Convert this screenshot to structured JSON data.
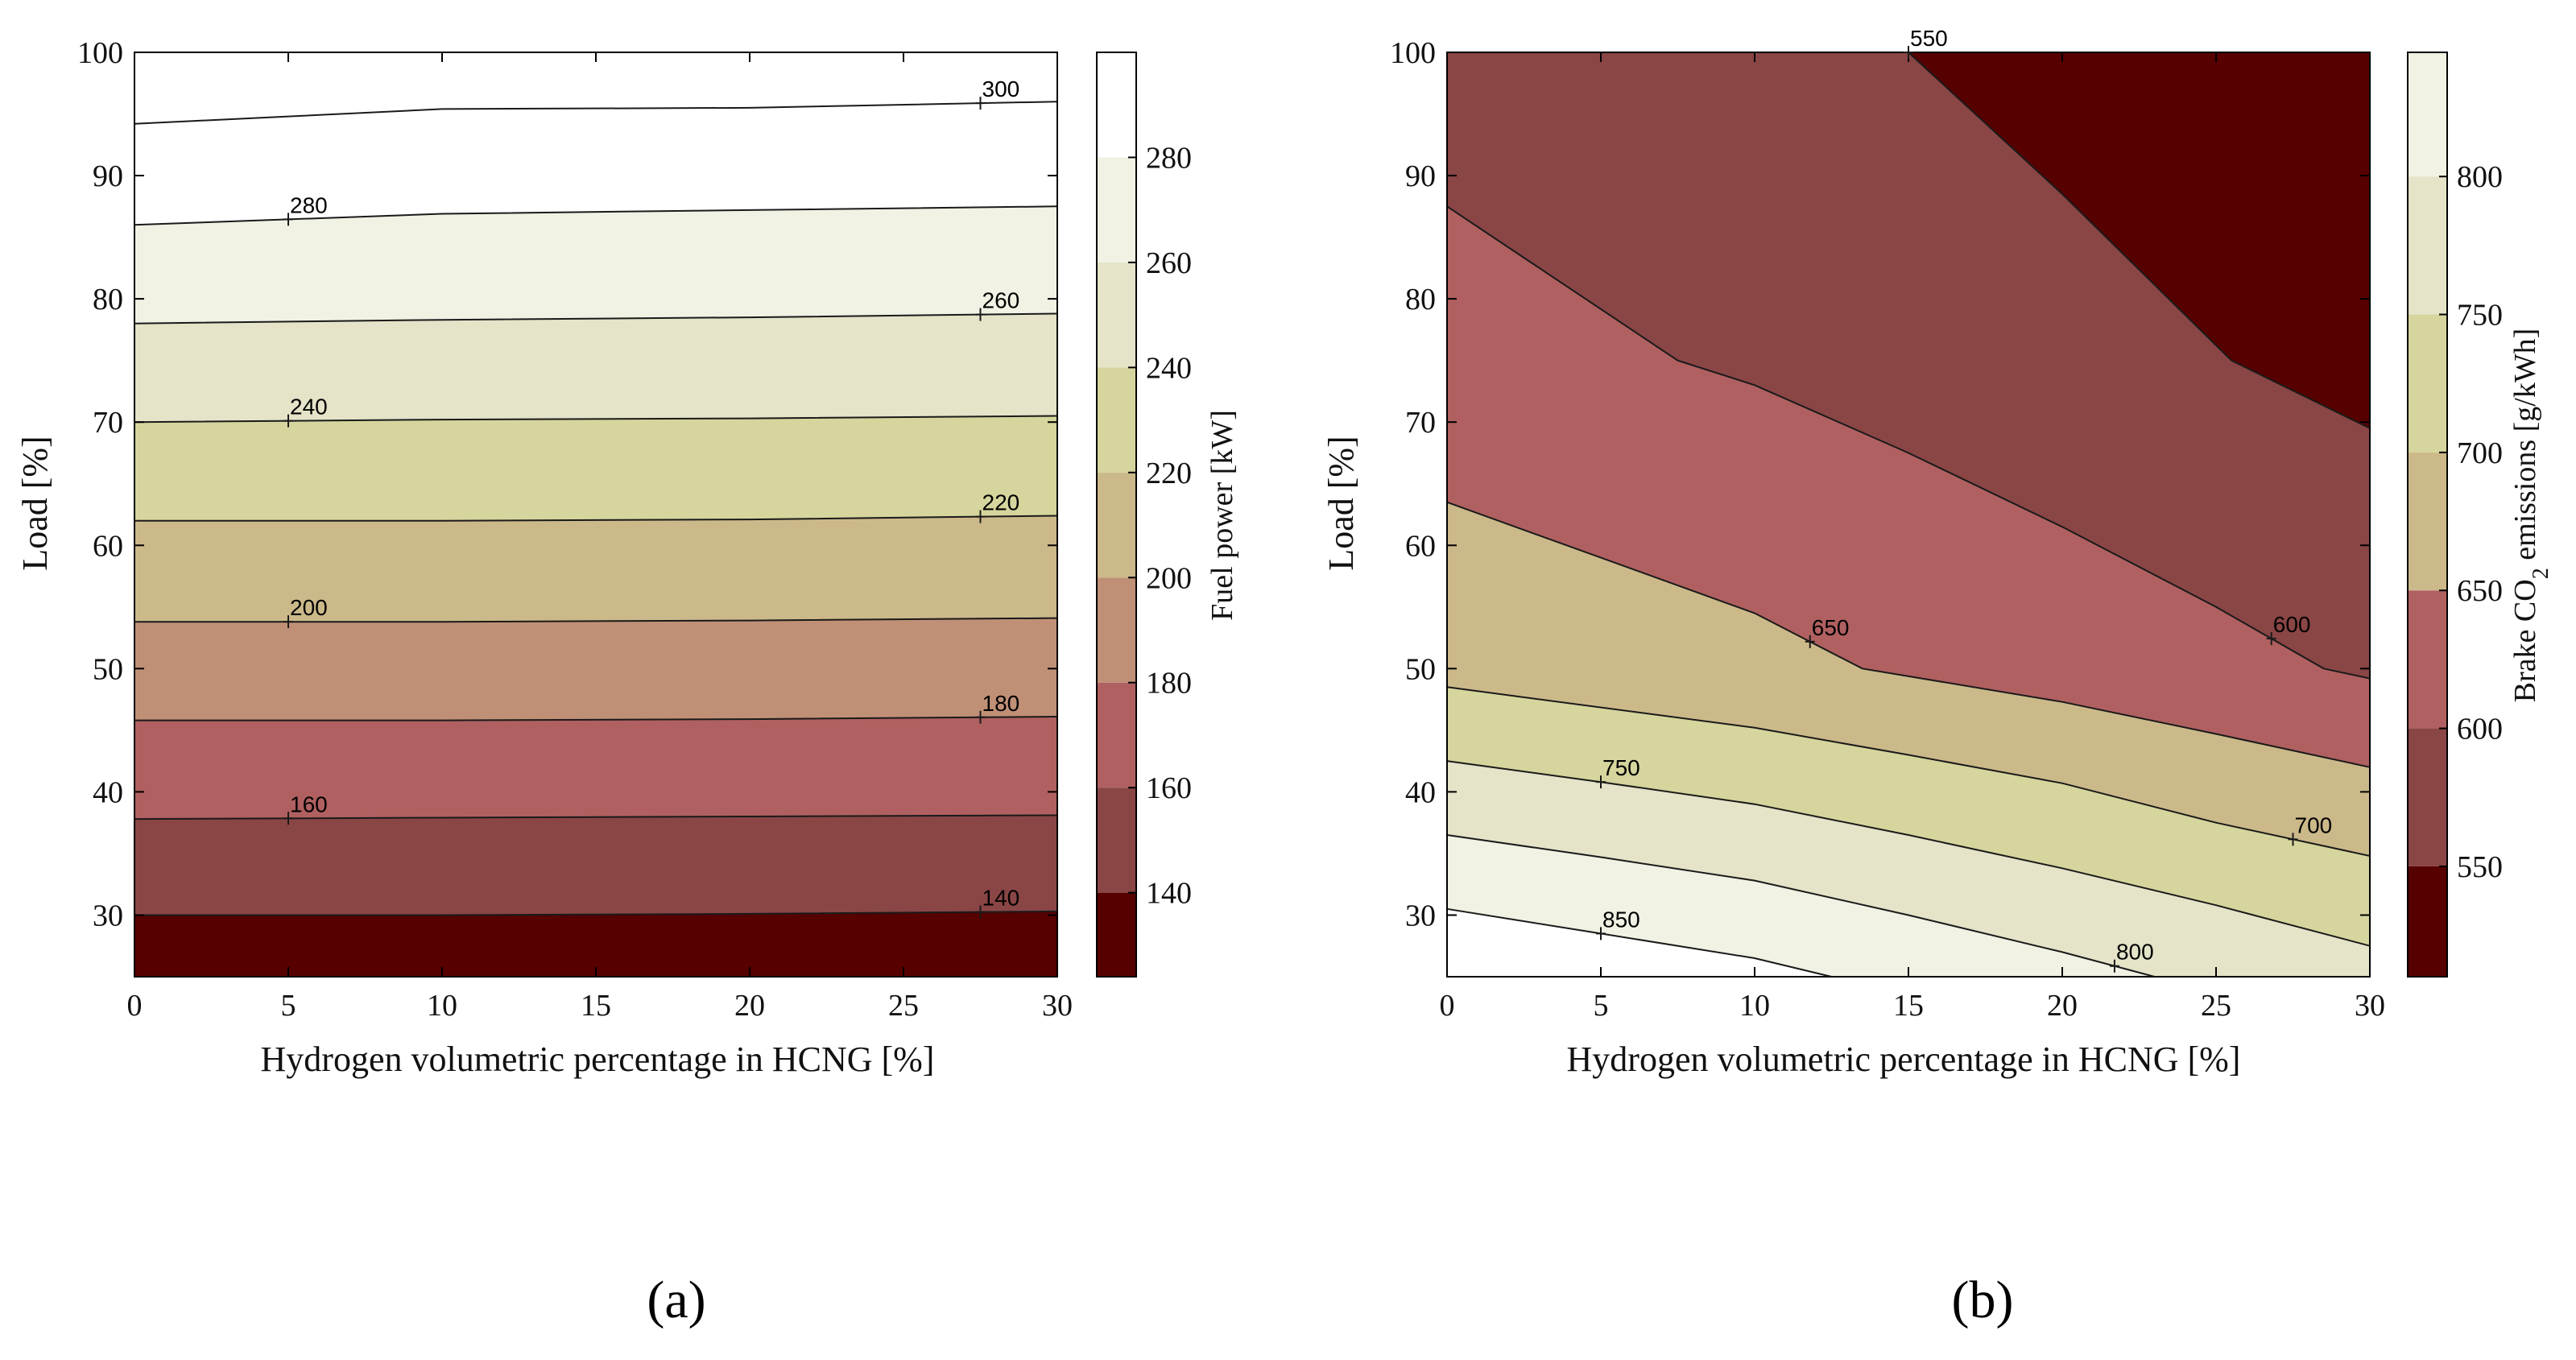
{
  "chart_data": [
    {
      "type": "contour",
      "panel_label": "(a)",
      "xlabel": "Hydrogen volumetric percentage in HCNG [%]",
      "ylabel": "Load [%]",
      "colorbar_label": "Fuel power [kW]",
      "xlim": [
        0,
        30
      ],
      "ylim": [
        25,
        100
      ],
      "xticks": [
        "0",
        "5",
        "10",
        "15",
        "20",
        "25",
        "30"
      ],
      "yticks": [
        "30",
        "40",
        "50",
        "60",
        "70",
        "80",
        "90",
        "100"
      ],
      "colorbar_ticks": [
        "140",
        "160",
        "180",
        "200",
        "220",
        "240",
        "260",
        "280"
      ],
      "colorbar_range": [
        124,
        300
      ],
      "level_colors": [
        "#560000",
        "#8a4545",
        "#b06060",
        "#c09076",
        "#ccb98a",
        "#d5d59d",
        "#e5e3c8",
        "#f1f1e4",
        "#ffffff"
      ],
      "levels": [
        {
          "value": 140,
          "label": "140",
          "label_x": 27.5,
          "points": [
            [
              0,
              30.0
            ],
            [
              10,
              30.0
            ],
            [
              20,
              30.1
            ],
            [
              30,
              30.3
            ]
          ]
        },
        {
          "value": 160,
          "label": "160",
          "label_x": 5,
          "points": [
            [
              0,
              37.8
            ],
            [
              10,
              37.9
            ],
            [
              20,
              38.0
            ],
            [
              30,
              38.1
            ]
          ]
        },
        {
          "value": 180,
          "label": "180",
          "label_x": 27.5,
          "points": [
            [
              0,
              45.8
            ],
            [
              10,
              45.8
            ],
            [
              20,
              45.9
            ],
            [
              30,
              46.1
            ]
          ]
        },
        {
          "value": 200,
          "label": "200",
          "label_x": 5,
          "points": [
            [
              0,
              53.8
            ],
            [
              10,
              53.8
            ],
            [
              20,
              53.9
            ],
            [
              30,
              54.1
            ]
          ]
        },
        {
          "value": 220,
          "label": "220",
          "label_x": 27.5,
          "points": [
            [
              0,
              62.0
            ],
            [
              10,
              62.0
            ],
            [
              20,
              62.1
            ],
            [
              30,
              62.4
            ]
          ]
        },
        {
          "value": 240,
          "label": "240",
          "label_x": 5,
          "points": [
            [
              0,
              70.0
            ],
            [
              10,
              70.2
            ],
            [
              20,
              70.3
            ],
            [
              30,
              70.5
            ]
          ]
        },
        {
          "value": 260,
          "label": "260",
          "label_x": 27.5,
          "points": [
            [
              0,
              78.0
            ],
            [
              10,
              78.3
            ],
            [
              20,
              78.5
            ],
            [
              30,
              78.8
            ]
          ]
        },
        {
          "value": 280,
          "label": "280",
          "label_x": 5,
          "points": [
            [
              0,
              86.0
            ],
            [
              10,
              86.9
            ],
            [
              20,
              87.2
            ],
            [
              30,
              87.5
            ]
          ]
        },
        {
          "value": 300,
          "label": "300",
          "label_x": 27.5,
          "points": [
            [
              0,
              94.2
            ],
            [
              5,
              94.8
            ],
            [
              10,
              95.4
            ],
            [
              20,
              95.5
            ],
            [
              30,
              96.0
            ]
          ]
        }
      ]
    },
    {
      "type": "contour",
      "panel_label": "(b)",
      "xlabel": "Hydrogen volumetric percentage in HCNG [%]",
      "ylabel": "Load [%]",
      "colorbar_label": "Brake CO2 emissions [g/kWh]",
      "colorbar_label_parts": [
        "Brake CO",
        "2",
        " emissions [g/kWh]"
      ],
      "xlim": [
        0,
        30
      ],
      "ylim": [
        25,
        100
      ],
      "xticks": [
        "0",
        "5",
        "10",
        "15",
        "20",
        "25",
        "30"
      ],
      "yticks": [
        "30",
        "40",
        "50",
        "60",
        "70",
        "80",
        "90",
        "100"
      ],
      "colorbar_ticks": [
        "550",
        "600",
        "650",
        "700",
        "750",
        "800"
      ],
      "colorbar_range": [
        510,
        845
      ],
      "level_colors": [
        "#560000",
        "#8a4545",
        "#b06060",
        "#ccb98a",
        "#d5d59d",
        "#e5e3c8",
        "#f1f1e4",
        "#ffffff"
      ],
      "levels": [
        {
          "value": 550,
          "label": "550",
          "label_x": 15,
          "points": [
            [
              15,
              100
            ],
            [
              20,
              88.5
            ],
            [
              25.5,
              75
            ],
            [
              30,
              69.5
            ]
          ]
        },
        {
          "value": 600,
          "label": "600",
          "label_x": 26.8,
          "points": [
            [
              0,
              87.5
            ],
            [
              7.5,
              75
            ],
            [
              10,
              73
            ],
            [
              15,
              67.5
            ],
            [
              20,
              61.5
            ],
            [
              25,
              55
            ],
            [
              28.5,
              50
            ],
            [
              30,
              49.2
            ]
          ]
        },
        {
          "value": 650,
          "label": "650",
          "label_x": 11.8,
          "points": [
            [
              0,
              63.5
            ],
            [
              5,
              59
            ],
            [
              10,
              54.5
            ],
            [
              13.5,
              50
            ],
            [
              20,
              47.3
            ],
            [
              25,
              44.7
            ],
            [
              30,
              42
            ]
          ]
        },
        {
          "value": 700,
          "label": "700",
          "label_x": 27.5,
          "points": [
            [
              0,
              48.5
            ],
            [
              10,
              45.2
            ],
            [
              15,
              43
            ],
            [
              20,
              40.7
            ],
            [
              25,
              37.5
            ],
            [
              30,
              34.8
            ]
          ]
        },
        {
          "value": 750,
          "label": "750",
          "label_x": 5,
          "points": [
            [
              0,
              42.5
            ],
            [
              5,
              40.8
            ],
            [
              10,
              39
            ],
            [
              15,
              36.5
            ],
            [
              20,
              33.8
            ],
            [
              25,
              30.8
            ],
            [
              30,
              27.5
            ]
          ]
        },
        {
          "value": 800,
          "label": "800",
          "label_x": 21.7,
          "points": [
            [
              0,
              36.5
            ],
            [
              5,
              34.7
            ],
            [
              10,
              32.8
            ],
            [
              15,
              30
            ],
            [
              20,
              27
            ],
            [
              23,
              25
            ]
          ]
        },
        {
          "value": 850,
          "label": "850",
          "label_x": 5,
          "points": [
            [
              0,
              30.5
            ],
            [
              5,
              28.5
            ],
            [
              10,
              26.5
            ],
            [
              12.5,
              25
            ]
          ]
        }
      ]
    }
  ]
}
